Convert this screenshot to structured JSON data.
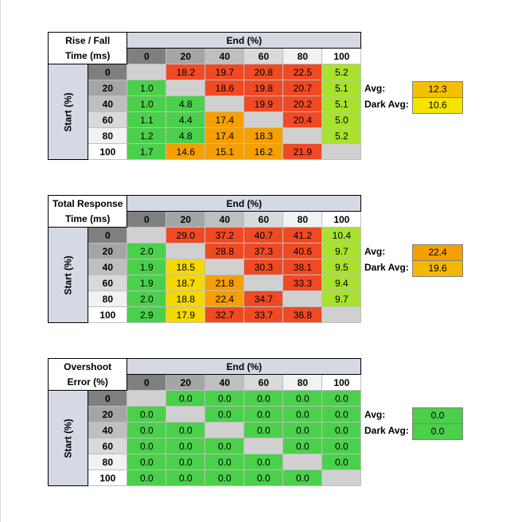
{
  "tables": [
    {
      "title_line1": "Rise / Fall",
      "title_line2": "Time (ms)",
      "end_label": "End (%)",
      "start_label": "Start (%)",
      "columns": [
        "0",
        "20",
        "40",
        "60",
        "80",
        "100"
      ],
      "rows": [
        {
          "label": "0",
          "cells": [
            "",
            "18.2",
            "19.7",
            "20.8",
            "22.5",
            "5.2"
          ]
        },
        {
          "label": "20",
          "cells": [
            "1.0",
            "",
            "18.6",
            "19.8",
            "20.7",
            "5.1"
          ]
        },
        {
          "label": "40",
          "cells": [
            "1.0",
            "4.8",
            "",
            "19.9",
            "20.2",
            "5.1"
          ]
        },
        {
          "label": "60",
          "cells": [
            "1.1",
            "4.4",
            "17.4",
            "",
            "20.4",
            "5.0"
          ]
        },
        {
          "label": "80",
          "cells": [
            "1.2",
            "4.8",
            "17.4",
            "18.3",
            "",
            "5.2"
          ]
        },
        {
          "label": "100",
          "cells": [
            "1.7",
            "14.6",
            "15.1",
            "16.2",
            "21.9",
            ""
          ]
        }
      ],
      "colors": [
        [
          "gray",
          "red",
          "red",
          "red",
          "red",
          "lime"
        ],
        [
          "green",
          "gray",
          "red",
          "red",
          "red",
          "lime"
        ],
        [
          "green",
          "green",
          "gray",
          "red",
          "red",
          "lime"
        ],
        [
          "green",
          "green",
          "orange",
          "gray",
          "red",
          "lime"
        ],
        [
          "green",
          "green",
          "orange",
          "orange",
          "gray",
          "lime"
        ],
        [
          "green",
          "orange",
          "orange",
          "orange",
          "red",
          "gray"
        ]
      ],
      "avg_label": "Avg:",
      "avg_value": "12.3",
      "avg_color": "#f5c000",
      "dark_avg_label": "Dark Avg:",
      "dark_avg_value": "10.6",
      "dark_avg_color": "#f5e400"
    },
    {
      "title_line1": "Total Response",
      "title_line2": "Time (ms)",
      "end_label": "End (%)",
      "start_label": "Start (%)",
      "columns": [
        "0",
        "20",
        "40",
        "60",
        "80",
        "100"
      ],
      "rows": [
        {
          "label": "0",
          "cells": [
            "",
            "29.0",
            "37.2",
            "40.7",
            "41.2",
            "10.4"
          ]
        },
        {
          "label": "20",
          "cells": [
            "2.0",
            "",
            "28.8",
            "37.3",
            "40.6",
            "9.7"
          ]
        },
        {
          "label": "40",
          "cells": [
            "1.9",
            "18.5",
            "",
            "30.3",
            "38.1",
            "9.5"
          ]
        },
        {
          "label": "60",
          "cells": [
            "1.9",
            "18.7",
            "21.8",
            "",
            "33.3",
            "9.4"
          ]
        },
        {
          "label": "80",
          "cells": [
            "2.0",
            "18.8",
            "22.4",
            "34.7",
            "",
            "9.7"
          ]
        },
        {
          "label": "100",
          "cells": [
            "2.9",
            "17.9",
            "32.7",
            "33.7",
            "36.8",
            ""
          ]
        }
      ],
      "colors": [
        [
          "gray",
          "red",
          "red",
          "red",
          "red",
          "lime"
        ],
        [
          "green",
          "gray",
          "red",
          "red",
          "red",
          "lime"
        ],
        [
          "green",
          "yellow",
          "gray",
          "red",
          "red",
          "lime"
        ],
        [
          "green",
          "yellow",
          "orange",
          "gray",
          "red",
          "lime"
        ],
        [
          "green",
          "yellow",
          "orange",
          "red",
          "gray",
          "lime"
        ],
        [
          "green",
          "yellow",
          "red",
          "red",
          "red",
          "gray"
        ]
      ],
      "avg_label": "Avg:",
      "avg_value": "22.4",
      "avg_color": "#f5a000",
      "dark_avg_label": "Dark Avg:",
      "dark_avg_value": "19.6",
      "dark_avg_color": "#f5b800"
    },
    {
      "title_line1": "Overshoot",
      "title_line2": "Error (%)",
      "end_label": "End (%)",
      "start_label": "Start (%)",
      "columns": [
        "0",
        "20",
        "40",
        "60",
        "80",
        "100"
      ],
      "rows": [
        {
          "label": "0",
          "cells": [
            "",
            "0.0",
            "0.0",
            "0.0",
            "0.0",
            "0.0"
          ]
        },
        {
          "label": "20",
          "cells": [
            "0.0",
            "",
            "0.0",
            "0.0",
            "0.0",
            "0.0"
          ]
        },
        {
          "label": "40",
          "cells": [
            "0.0",
            "0.0",
            "",
            "0.0",
            "0.0",
            "0.0"
          ]
        },
        {
          "label": "60",
          "cells": [
            "0.0",
            "0.0",
            "0.0",
            "",
            "0.0",
            "0.0"
          ]
        },
        {
          "label": "80",
          "cells": [
            "0.0",
            "0.0",
            "0.0",
            "0.0",
            "",
            "0.0"
          ]
        },
        {
          "label": "100",
          "cells": [
            "0.0",
            "0.0",
            "0.0",
            "0.0",
            "0.0",
            ""
          ]
        }
      ],
      "colors": [
        [
          "gray",
          "green",
          "green",
          "green",
          "green",
          "green"
        ],
        [
          "green",
          "gray",
          "green",
          "green",
          "green",
          "green"
        ],
        [
          "green",
          "green",
          "gray",
          "green",
          "green",
          "green"
        ],
        [
          "green",
          "green",
          "green",
          "gray",
          "green",
          "green"
        ],
        [
          "green",
          "green",
          "green",
          "green",
          "gray",
          "green"
        ],
        [
          "green",
          "green",
          "green",
          "green",
          "green",
          "gray"
        ]
      ],
      "avg_label": "Avg:",
      "avg_value": "0.0",
      "avg_color": "#4bd04b",
      "dark_avg_label": "Dark Avg:",
      "dark_avg_value": "0.0",
      "dark_avg_color": "#4bd04b"
    }
  ],
  "palette": {
    "gray": "#d0d0d0",
    "green": "#4bd04b",
    "lime": "#a8e22e",
    "yellow": "#f5d800",
    "orange": "#f5a000",
    "red": "#f04a24"
  }
}
